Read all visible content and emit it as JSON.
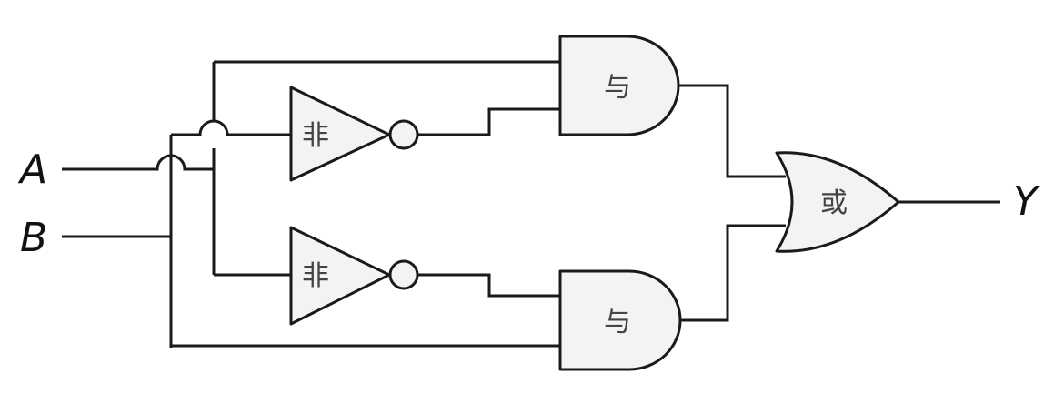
{
  "inputs": {
    "a": "A",
    "b": "B"
  },
  "output": {
    "y": "Y"
  },
  "gates": {
    "and_top": "与",
    "and_bottom": "与",
    "not_top": "非",
    "not_bottom": "非",
    "or": "或"
  }
}
